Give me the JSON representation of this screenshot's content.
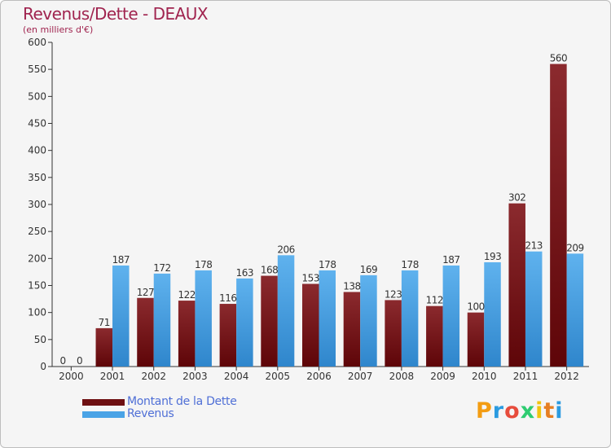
{
  "title": "Revenus/Dette - DEAUX",
  "subtitle": "(en milliers d'€)",
  "chart_data": {
    "type": "bar",
    "title": "Revenus/Dette - DEAUX",
    "subtitle": "(en milliers d'€)",
    "categories": [
      "2000",
      "2001",
      "2002",
      "2003",
      "2004",
      "2005",
      "2006",
      "2007",
      "2008",
      "2009",
      "2010",
      "2011",
      "2012"
    ],
    "series": [
      {
        "name": "Montant de la Dette",
        "values": [
          0,
          71,
          127,
          122,
          116,
          168,
          153,
          138,
          123,
          112,
          100,
          302,
          560
        ],
        "color": "#7a1518"
      },
      {
        "name": "Revenus",
        "values": [
          0,
          187,
          172,
          178,
          163,
          206,
          178,
          169,
          178,
          187,
          193,
          213,
          209
        ],
        "color": "#4aa3e6"
      }
    ],
    "ylim": [
      0,
      600
    ],
    "yticks": [
      0,
      50,
      100,
      150,
      200,
      250,
      300,
      350,
      400,
      450,
      500,
      550,
      600
    ],
    "grid": false,
    "data_labels": true,
    "legend_position": "bottom-left"
  },
  "legend": [
    {
      "label": "Montant de la Dette",
      "color": "#7a1518"
    },
    {
      "label": "Revenus",
      "color": "#4aa3e6"
    }
  ],
  "logo": {
    "text": "Proxiti",
    "letters": [
      "P",
      "r",
      "o",
      "x",
      "i",
      "t",
      "i"
    ],
    "colors": [
      "#f39c12",
      "#2b9be0",
      "#e74c3c",
      "#2ecc71",
      "#f1c40f",
      "#e67e22",
      "#2b9be0"
    ]
  }
}
